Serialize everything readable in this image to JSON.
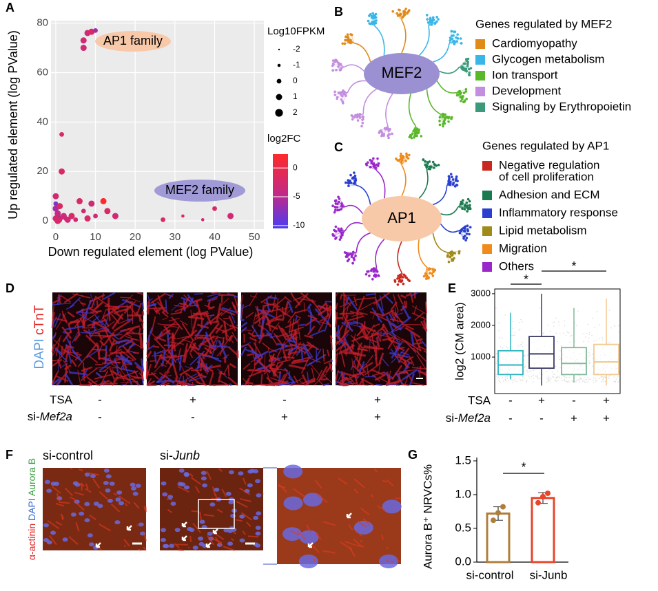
{
  "panel_labels": [
    "A",
    "B",
    "C",
    "D",
    "E",
    "F",
    "G"
  ],
  "chart_data": [
    {
      "type": "scatter",
      "xlabel": "Down regulated element (log PValue)",
      "ylabel": "Up regulated element (log PValue)",
      "x": [
        7,
        7,
        8,
        9,
        10,
        1.5,
        1.5,
        0,
        0,
        0,
        0.5,
        1,
        1,
        2,
        2.5,
        3,
        4,
        5,
        6,
        7,
        8,
        9,
        10,
        12,
        13,
        15,
        27,
        32,
        37,
        40,
        44,
        0,
        0.5,
        1
      ],
      "y": [
        70,
        73,
        76,
        76.5,
        77,
        35,
        20,
        10,
        7,
        5,
        3,
        6,
        1,
        2,
        1,
        0.5,
        2,
        0.5,
        8,
        4,
        1,
        7,
        2,
        8,
        4,
        2,
        0.5,
        2,
        0.5,
        5,
        2,
        1,
        0,
        0.3
      ],
      "size": [
        1,
        1,
        1,
        1,
        0,
        0,
        1,
        1,
        0,
        1,
        1,
        1,
        1,
        1,
        0,
        1,
        1,
        0,
        1,
        0,
        1,
        1,
        0,
        1,
        1,
        1,
        0,
        -1,
        -1,
        0,
        1,
        1,
        1,
        0
      ],
      "color_value": [
        -3,
        -3,
        -3,
        -2,
        -6,
        -2,
        -2,
        -3,
        -8,
        -6,
        -4,
        -2,
        -5,
        -3,
        -4,
        -3,
        -2,
        -3,
        -2,
        -3,
        -2,
        -3,
        -3,
        2,
        -2,
        -3,
        -2,
        -2,
        -3,
        -2,
        -3,
        -3,
        -2,
        -2
      ],
      "xlim": [
        -1.2,
        52.4
      ],
      "ylim": [
        -3.3,
        81
      ],
      "xticks": [
        0,
        10,
        20,
        30,
        40,
        50
      ],
      "yticks": [
        0,
        20,
        40,
        60,
        80
      ],
      "grid": true,
      "size_legend": {
        "title": "Log10FPKM",
        "values": [
          -2,
          -1,
          0,
          1,
          2
        ]
      },
      "color_legend": {
        "title": "log2FC",
        "lim": [
          -10.5,
          2.4
        ],
        "ticks": [
          0,
          -5,
          -10
        ]
      },
      "annotations": [
        {
          "text": "AP1 family",
          "color": "#f8c9a8"
        },
        {
          "text": "MEF2 family",
          "color": "#a09ad6"
        }
      ]
    },
    {
      "type": "box",
      "ylabel": "log2 (CM area)",
      "colors": [
        "#2ab3bf",
        "#3b3b66",
        "#7fb99a",
        "#f2c98e"
      ],
      "min": [
        300,
        100,
        200,
        100
      ],
      "q1": [
        450,
        650,
        450,
        450
      ],
      "median": [
        750,
        1100,
        800,
        850
      ],
      "q3": [
        1200,
        1650,
        1300,
        1400
      ],
      "max": [
        2400,
        3000,
        2550,
        2850
      ],
      "ylim": [
        -150,
        3150
      ],
      "yticks": [
        1000,
        2000,
        3000
      ],
      "significance": [
        "*",
        "*"
      ]
    },
    {
      "type": "bar",
      "ylabel": "Aurora B⁺ NRVCs%",
      "categories": [
        "si-control",
        "si-Junb"
      ],
      "colors": [
        "#b07d3b",
        "#e8452a"
      ],
      "values": [
        0.72,
        0.95
      ],
      "errors": [
        0.1,
        0.08
      ],
      "points": [
        [
          0.62,
          0.73,
          0.82
        ],
        [
          0.88,
          0.97,
          1.02
        ]
      ],
      "ylim": [
        0,
        1.55
      ],
      "yticks": [
        {
          "value": 0,
          "label": "0.0"
        },
        {
          "value": 0.5,
          "label": "0.5"
        },
        {
          "value": 1,
          "label": "1.0"
        },
        {
          "value": 1.5,
          "label": "1.5"
        }
      ],
      "significance": "*"
    }
  ],
  "mef2": {
    "center": "MEF2",
    "legend_title": "Genes regulated by MEF2",
    "legend": [
      {
        "label": "Cardiomyopathy",
        "color": "#e08a1a"
      },
      {
        "label": "Glycogen metabolism",
        "color": "#38b6e8"
      },
      {
        "label": "Ion transport",
        "color": "#58b82a"
      },
      {
        "label": "Development",
        "color": "#c48ee0"
      },
      {
        "label": "Signaling by Erythropoietin",
        "color": "#3a9a7a"
      }
    ]
  },
  "ap1": {
    "center": "AP1",
    "legend_title": "Genes regulated by AP1",
    "legend": [
      {
        "label": [
          "Negative regulation",
          "of cell proliferation"
        ],
        "color": "#c8281e"
      },
      {
        "label": [
          "Adhesion and ECM"
        ],
        "color": "#1b7a50"
      },
      {
        "label": [
          "Inflammatory response"
        ],
        "color": "#2a3fd0"
      },
      {
        "label": [
          "Lipid metabolism"
        ],
        "color": "#a08a1a"
      },
      {
        "label": [
          "Migration"
        ],
        "color": "#f08a1a"
      },
      {
        "label": [
          "Others"
        ],
        "color": "#9a28c8"
      }
    ]
  },
  "conditions": [
    {
      "label": "TSA",
      "signs": [
        "-",
        "+",
        "-",
        "+"
      ]
    },
    {
      "prefix": "si-",
      "italic": "Mef2a",
      "signs": [
        "-",
        "-",
        "+",
        "+"
      ]
    }
  ],
  "panel_d": {
    "stain": [
      "DAPI",
      "cTnT"
    ]
  },
  "panel_f": {
    "titles": [
      {
        "text": "si-control"
      },
      {
        "prefix": "si-",
        "italic": "Junb"
      }
    ],
    "stain": [
      "α-actinin",
      "DAPI",
      "Aurora B"
    ]
  }
}
